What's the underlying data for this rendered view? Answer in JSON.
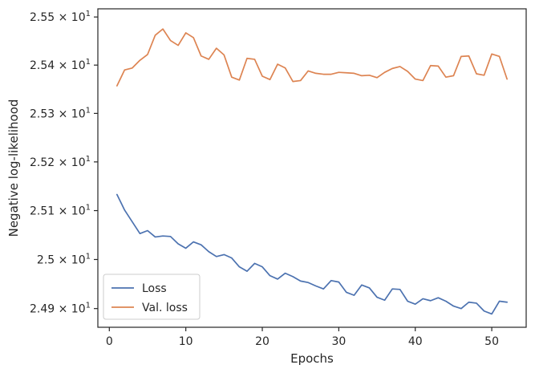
{
  "chart_data": {
    "type": "line",
    "xlabel": "Epochs",
    "ylabel": "Negative log-likelihood",
    "xlim": [
      -1.5,
      54.5
    ],
    "ylim": [
      24.862,
      25.517
    ],
    "yscale": "log",
    "grid": false,
    "legend_position": "lower-left",
    "x_ticks": [
      {
        "value": 0,
        "label": "0"
      },
      {
        "value": 10,
        "label": "10"
      },
      {
        "value": 20,
        "label": "20"
      },
      {
        "value": 30,
        "label": "30"
      },
      {
        "value": 40,
        "label": "40"
      },
      {
        "value": 50,
        "label": "50"
      }
    ],
    "y_ticks": [
      {
        "value": 24.9,
        "mantissa": "2.49",
        "exponent": "1"
      },
      {
        "value": 25.0,
        "mantissa": "2.5",
        "exponent": "1"
      },
      {
        "value": 25.1,
        "mantissa": "2.51",
        "exponent": "1"
      },
      {
        "value": 25.2,
        "mantissa": "2.52",
        "exponent": "1"
      },
      {
        "value": 25.3,
        "mantissa": "2.53",
        "exponent": "1"
      },
      {
        "value": 25.4,
        "mantissa": "2.54",
        "exponent": "1"
      },
      {
        "value": 25.5,
        "mantissa": "2.55",
        "exponent": "1"
      }
    ],
    "x": [
      1,
      2,
      3,
      4,
      5,
      6,
      7,
      8,
      9,
      10,
      11,
      12,
      13,
      14,
      15,
      16,
      17,
      18,
      19,
      20,
      21,
      22,
      23,
      24,
      25,
      26,
      27,
      28,
      29,
      30,
      31,
      32,
      33,
      34,
      35,
      36,
      37,
      38,
      39,
      40,
      41,
      42,
      43,
      44,
      45,
      46,
      47,
      48,
      49,
      50,
      51,
      52
    ],
    "series": [
      {
        "name": "Loss",
        "color": "#4c72b0",
        "values": [
          25.133,
          25.101,
          25.077,
          25.053,
          25.059,
          25.046,
          25.048,
          25.047,
          25.032,
          25.023,
          25.036,
          25.03,
          25.016,
          25.006,
          25.01,
          25.003,
          24.985,
          24.976,
          24.992,
          24.985,
          24.967,
          24.96,
          24.972,
          24.965,
          24.956,
          24.953,
          24.946,
          24.94,
          24.957,
          24.954,
          24.933,
          24.927,
          24.948,
          24.942,
          24.923,
          24.917,
          24.94,
          24.939,
          24.915,
          24.909,
          24.92,
          24.916,
          24.922,
          24.915,
          24.905,
          24.9,
          24.913,
          24.911,
          24.895,
          24.889,
          24.915,
          24.913
        ]
      },
      {
        "name": "Val. loss",
        "color": "#dd8452",
        "values": [
          25.357,
          25.39,
          25.394,
          25.41,
          25.422,
          25.462,
          25.475,
          25.451,
          25.441,
          25.467,
          25.457,
          25.419,
          25.412,
          25.435,
          25.421,
          25.375,
          25.369,
          25.414,
          25.412,
          25.377,
          25.37,
          25.402,
          25.394,
          25.366,
          25.368,
          25.388,
          25.383,
          25.381,
          25.381,
          25.385,
          25.384,
          25.383,
          25.378,
          25.379,
          25.374,
          25.385,
          25.393,
          25.397,
          25.387,
          25.371,
          25.368,
          25.399,
          25.398,
          25.375,
          25.378,
          25.418,
          25.419,
          25.382,
          25.379,
          25.423,
          25.418,
          25.371
        ]
      }
    ]
  }
}
